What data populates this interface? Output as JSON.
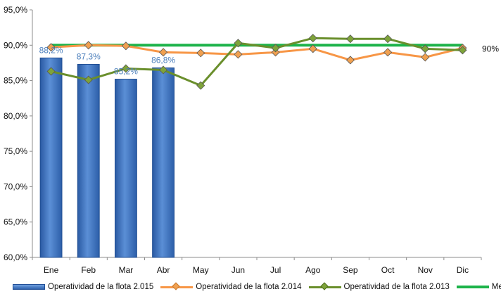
{
  "chart_data": {
    "type": "bar+line",
    "categories": [
      "Ene",
      "Feb",
      "Mar",
      "Abr",
      "May",
      "Jun",
      "Jul",
      "Ago",
      "Sep",
      "Oct",
      "Nov",
      "Dic"
    ],
    "ylim": [
      60.0,
      95.0
    ],
    "yticks": [
      "60,0%",
      "65,0%",
      "70,0%",
      "75,0%",
      "80,0%",
      "85,0%",
      "90,0%",
      "95,0%"
    ],
    "ytick_values": [
      60,
      65,
      70,
      75,
      80,
      85,
      90,
      95
    ],
    "grid": false,
    "legend_position": "bottom",
    "series": [
      {
        "name": "Operatividad de la flota 2.015",
        "type": "bar",
        "color": "#3b6fc0",
        "values": [
          88.2,
          87.3,
          85.2,
          86.8,
          null,
          null,
          null,
          null,
          null,
          null,
          null,
          null
        ],
        "labels": [
          "88,2%",
          "87,3%",
          "85,2%",
          "86,8%"
        ]
      },
      {
        "name": "Operatividad de la flota 2.014",
        "type": "line",
        "color": "#f79646",
        "marker_color": "#f0a050",
        "values": [
          89.7,
          90.0,
          89.9,
          89.0,
          88.9,
          88.7,
          89.0,
          89.5,
          87.9,
          89.0,
          88.3,
          89.6
        ]
      },
      {
        "name": "Operatividad de la flota 2.013",
        "type": "line",
        "color": "#6a8f2c",
        "marker_color": "#7ea33a",
        "values": [
          86.3,
          85.1,
          86.7,
          86.5,
          84.3,
          90.3,
          89.6,
          91.0,
          90.9,
          90.9,
          89.5,
          89.3
        ]
      },
      {
        "name": "Meta",
        "type": "line",
        "color": "#1db34a",
        "values": [
          90,
          90,
          90,
          90,
          90,
          90,
          90,
          90,
          90,
          90,
          90,
          90
        ],
        "label": "90%"
      }
    ]
  }
}
